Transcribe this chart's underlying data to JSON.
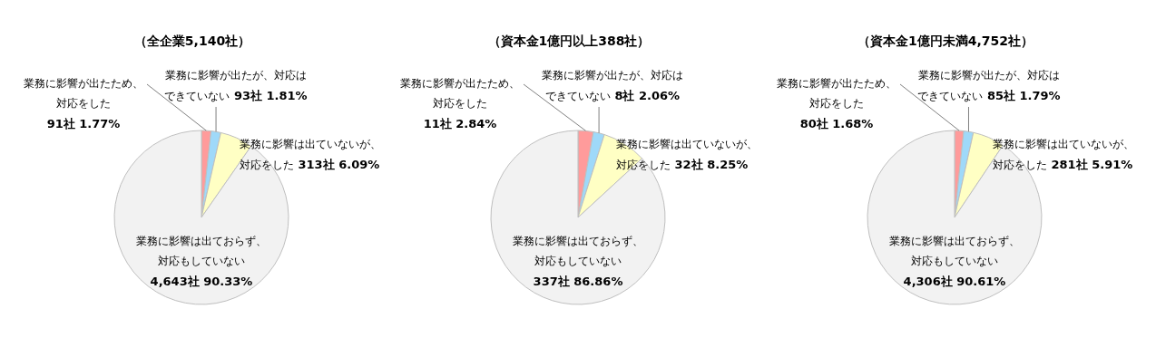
{
  "chart_data": [
    {
      "type": "pie",
      "title": "（全企業5,140社）",
      "categories": [
        "業務に影響が出たため、対応をした",
        "業務に影響が出たが、対応はできていない",
        "業務に影響は出ていないが、対応をした",
        "業務に影響は出ておらず、対応もしていない"
      ],
      "values": [
        91,
        93,
        313,
        4643
      ],
      "value_labels": [
        "91社 1.77%",
        "93社 1.81%",
        "313社 6.09%",
        "4,643社 90.33%"
      ],
      "colors": [
        "#ff9b9b",
        "#9fd9f9",
        "#ffffc4",
        "#f2f2f2"
      ]
    },
    {
      "type": "pie",
      "title": "（資本金1億円以上388社）",
      "categories": [
        "業務に影響が出たため、対応をした",
        "業務に影響が出たが、対応はできていない",
        "業務に影響は出ていないが、対応をした",
        "業務に影響は出ておらず、対応もしていない"
      ],
      "values": [
        11,
        8,
        32,
        337
      ],
      "value_labels": [
        "11社 2.84%",
        "8社 2.06%",
        "32社 8.25%",
        "337社 86.86%"
      ],
      "colors": [
        "#ff9b9b",
        "#9fd9f9",
        "#ffffc4",
        "#f2f2f2"
      ]
    },
    {
      "type": "pie",
      "title": "（資本金1億円未満4,752社）",
      "categories": [
        "業務に影響が出たため、対応をした",
        "業務に影響が出たが、対応はできていない",
        "業務に影響は出ていないが、対応をした",
        "業務に影響は出ておらず、対応もしていない"
      ],
      "values": [
        80,
        85,
        281,
        4306
      ],
      "value_labels": [
        "80社 1.68%",
        "85社 1.79%",
        "281社 5.91%",
        "4,306社 90.61%"
      ],
      "colors": [
        "#ff9b9b",
        "#9fd9f9",
        "#ffffc4",
        "#f2f2f2"
      ]
    }
  ]
}
